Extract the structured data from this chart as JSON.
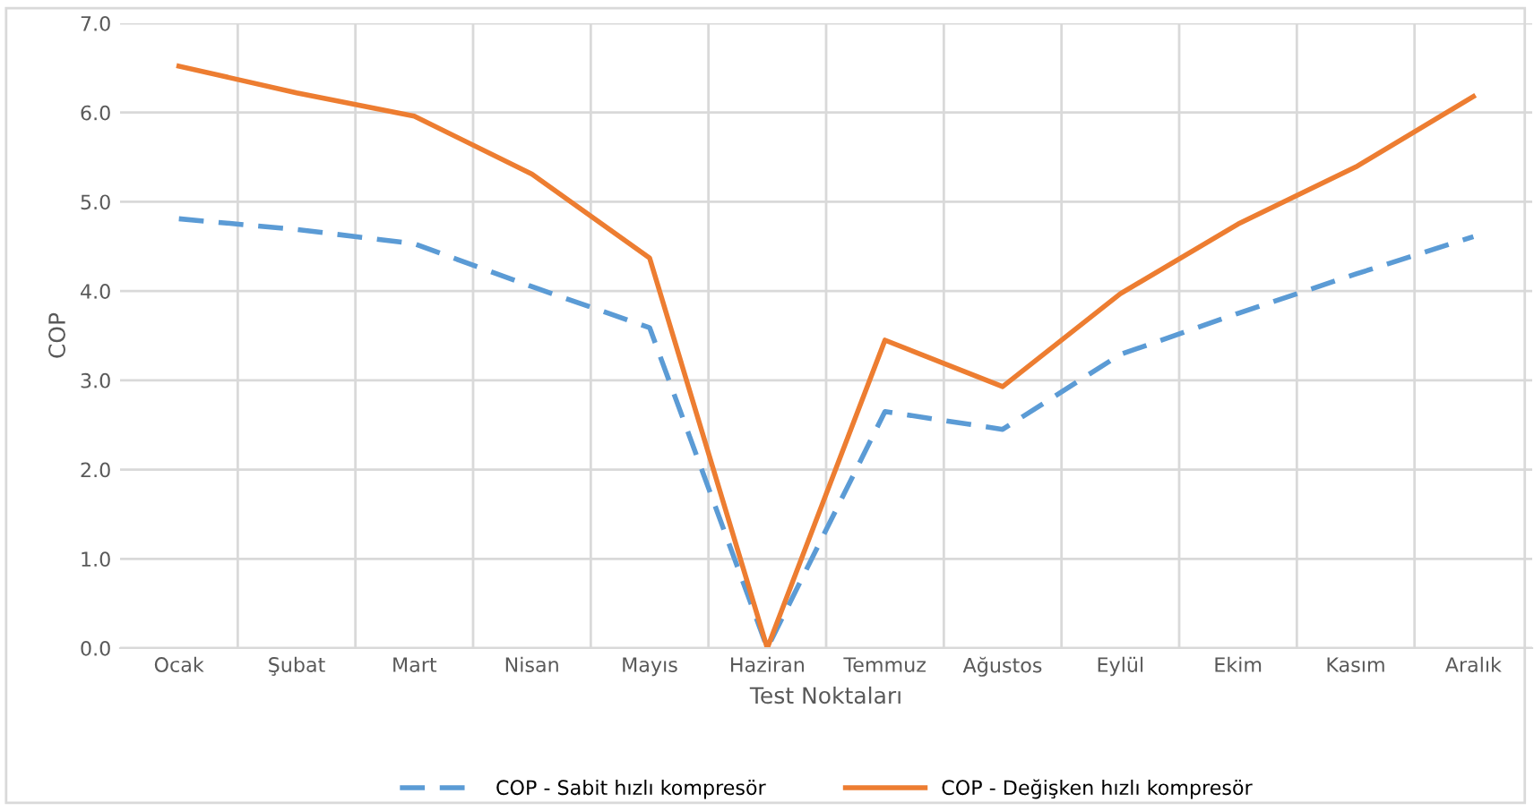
{
  "chart_data": {
    "type": "line",
    "xlabel": "Test Noktaları",
    "ylabel": "COP",
    "categories": [
      "Ocak",
      "Şubat",
      "Mart",
      "Nisan",
      "Mayıs",
      "Haziran",
      "Temmuz",
      "Ağustos",
      "Eylül",
      "Ekim",
      "Kasım",
      "Aralık"
    ],
    "series": [
      {
        "name": "COP - Sabit hızlı kompresör",
        "color": "#5b9bd5",
        "line_style": "dashed",
        "values": [
          4.81,
          4.69,
          4.53,
          4.05,
          3.59,
          0.0,
          2.65,
          2.45,
          3.29,
          3.75,
          4.19,
          4.61
        ]
      },
      {
        "name": "COP - Değişken hızlı kompresör",
        "color": "#ed7d31",
        "line_style": "solid",
        "values": [
          6.52,
          6.22,
          5.96,
          5.31,
          4.37,
          0.0,
          3.45,
          2.93,
          3.97,
          4.75,
          5.39,
          6.18
        ]
      }
    ],
    "ylim": [
      0,
      7
    ],
    "yticks": [
      {
        "value": 0,
        "label": "0.0"
      },
      {
        "value": 1,
        "label": "1.0"
      },
      {
        "value": 2,
        "label": "2.0"
      },
      {
        "value": 3,
        "label": "3.0"
      },
      {
        "value": 4,
        "label": "4.0"
      },
      {
        "value": 5,
        "label": "5.0"
      },
      {
        "value": 6,
        "label": "6.0"
      },
      {
        "value": 7,
        "label": "7.0"
      }
    ],
    "grid": true,
    "legend": "bottom",
    "marker": "none"
  }
}
